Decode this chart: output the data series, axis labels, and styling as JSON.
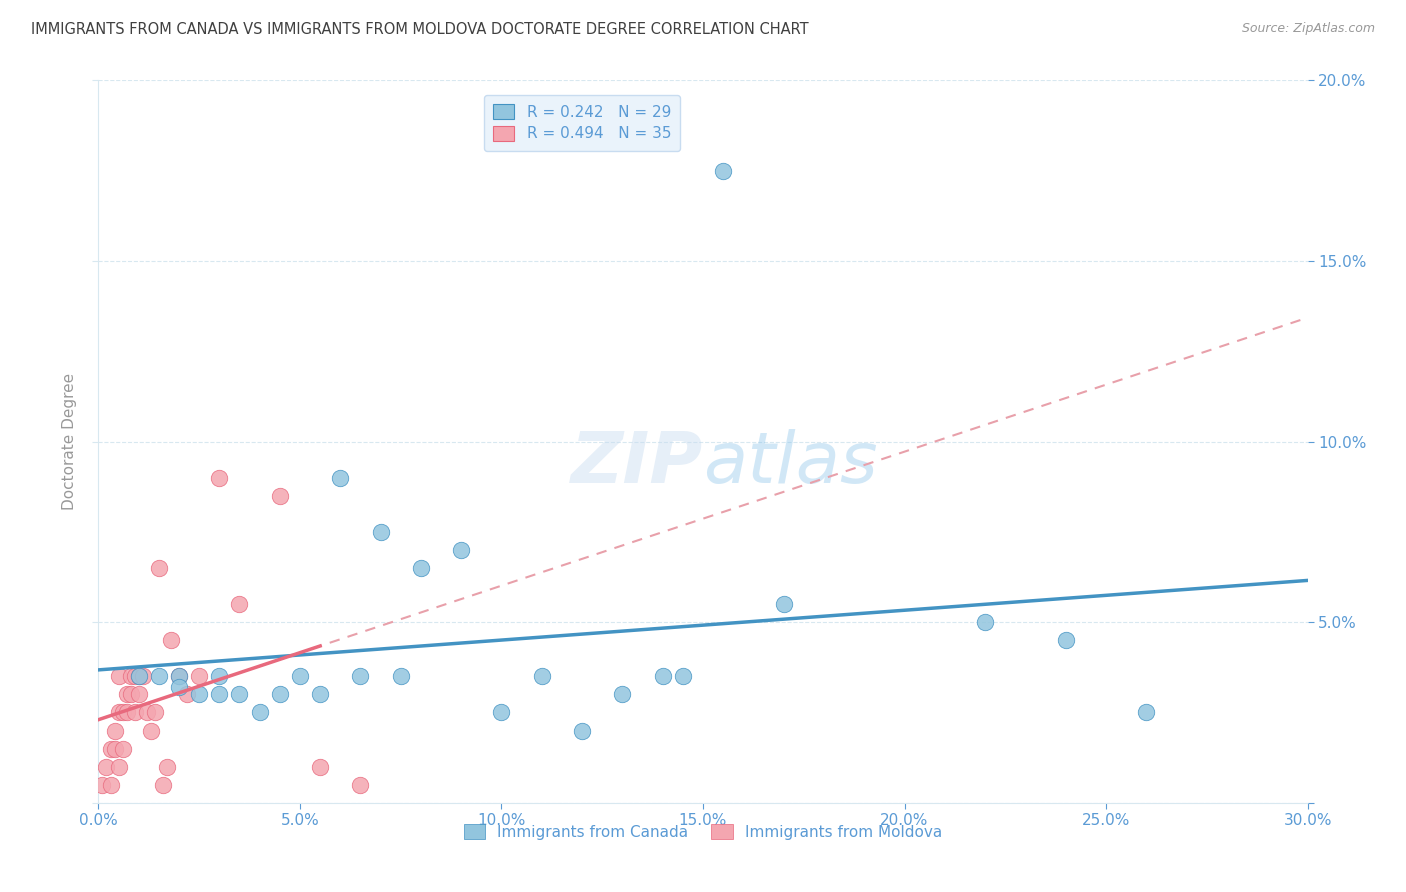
{
  "title": "IMMIGRANTS FROM CANADA VS IMMIGRANTS FROM MOLDOVA DOCTORATE DEGREE CORRELATION CHART",
  "source": "Source: ZipAtlas.com",
  "ylabel": "Doctorate Degree",
  "xlabel_vals": [
    0.0,
    5.0,
    10.0,
    15.0,
    20.0,
    25.0,
    30.0
  ],
  "ylabel_vals": [
    0.0,
    5.0,
    10.0,
    15.0,
    20.0
  ],
  "xlim": [
    0.0,
    30.0
  ],
  "ylim": [
    0.0,
    20.0
  ],
  "canada_R": 0.242,
  "canada_N": 29,
  "moldova_R": 0.494,
  "moldova_N": 35,
  "canada_color": "#92C5DE",
  "moldova_color": "#F4A6B0",
  "canada_line_color": "#4393C3",
  "moldova_line_color": "#E8697D",
  "moldova_dashed_color": "#E8A0AA",
  "title_color": "#404040",
  "axis_label_color": "#5B9BD5",
  "legend_box_color": "#EAF3FB",
  "background_color": "#FFFFFF",
  "grid_color": "#D8E8F0",
  "canada_points_x": [
    1.0,
    1.5,
    2.0,
    2.0,
    2.5,
    3.0,
    3.0,
    3.5,
    4.0,
    4.5,
    5.0,
    5.5,
    6.0,
    6.5,
    7.0,
    7.5,
    8.0,
    9.0,
    10.0,
    11.0,
    12.0,
    13.0,
    14.0,
    14.5,
    15.5,
    17.0,
    22.0,
    24.0,
    26.0
  ],
  "canada_points_y": [
    3.5,
    3.5,
    3.5,
    3.2,
    3.0,
    3.5,
    3.0,
    3.0,
    2.5,
    3.0,
    3.5,
    3.0,
    9.0,
    3.5,
    7.5,
    3.5,
    6.5,
    7.0,
    2.5,
    3.5,
    2.0,
    3.0,
    3.5,
    3.5,
    17.5,
    5.5,
    5.0,
    4.5,
    2.5
  ],
  "moldova_points_x": [
    0.1,
    0.2,
    0.3,
    0.3,
    0.4,
    0.4,
    0.5,
    0.5,
    0.5,
    0.6,
    0.6,
    0.7,
    0.7,
    0.8,
    0.8,
    0.9,
    0.9,
    1.0,
    1.0,
    1.1,
    1.2,
    1.3,
    1.4,
    1.5,
    1.6,
    1.7,
    1.8,
    2.0,
    2.2,
    2.5,
    3.0,
    3.5,
    4.5,
    5.5,
    6.5
  ],
  "moldova_points_y": [
    0.5,
    1.0,
    0.5,
    1.5,
    2.0,
    1.5,
    3.5,
    2.5,
    1.0,
    2.5,
    1.5,
    3.0,
    2.5,
    3.5,
    3.0,
    3.5,
    2.5,
    3.5,
    3.0,
    3.5,
    2.5,
    2.0,
    2.5,
    6.5,
    0.5,
    1.0,
    4.5,
    3.5,
    3.0,
    3.5,
    9.0,
    5.5,
    8.5,
    1.0,
    0.5
  ]
}
